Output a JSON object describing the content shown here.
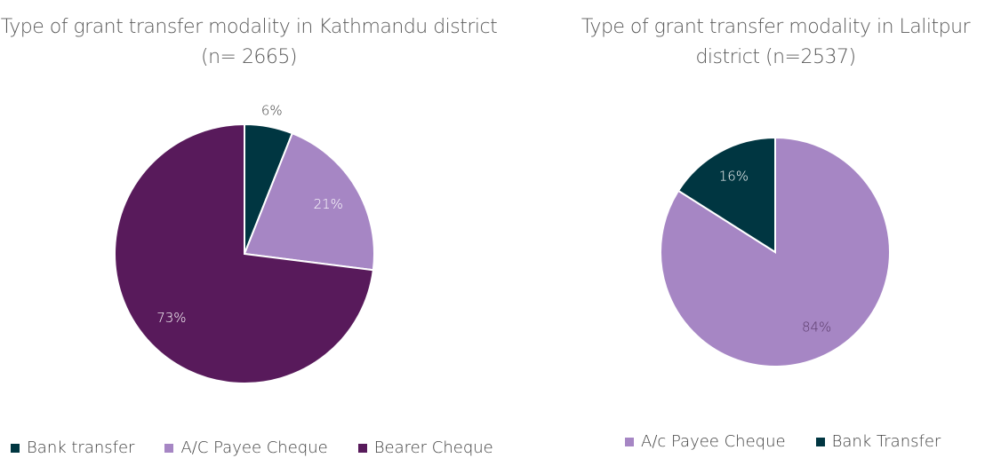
{
  "chart_data": [
    {
      "type": "pie",
      "title": "Type of grant transfer modality in Kathmandu district (n= 2665)",
      "categories": [
        "Bank transfer",
        "A/C Payee Cheque",
        "Bearer Cheque"
      ],
      "values": [
        6,
        21,
        73
      ],
      "value_labels": [
        "6%",
        "21%",
        "73%"
      ],
      "colors": [
        "#003641",
        "#a686c4",
        "#581a5b"
      ],
      "legend": "bottom"
    },
    {
      "type": "pie",
      "title": "Type of grant transfer modality in Lalitpur district (n=2537)",
      "categories": [
        "A/c Payee Cheque",
        "Bank Transfer"
      ],
      "values": [
        84,
        16
      ],
      "value_labels": [
        "84%",
        "16%"
      ],
      "colors": [
        "#a686c4",
        "#003641"
      ],
      "legend": "bottom"
    }
  ]
}
